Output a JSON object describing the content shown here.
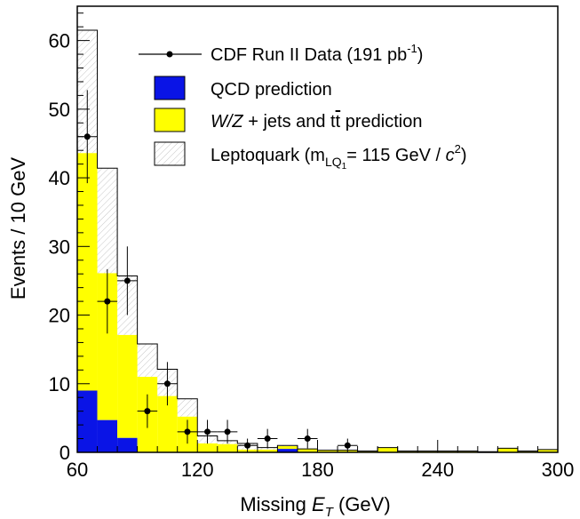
{
  "chart_data": {
    "type": "bar",
    "xlabel_prefix": "Missing ",
    "xlabel_var": "E",
    "xlabel_sub": "T",
    "xlabel_suffix": " (GeV)",
    "ylabel": "Events / 10 GeV",
    "xlim": [
      60,
      300
    ],
    "ylim": [
      0,
      65
    ],
    "bin_width": 10,
    "x_ticks": [
      60,
      120,
      180,
      240,
      300
    ],
    "x_tick_labels": [
      "60",
      "120",
      "180",
      "240",
      "300"
    ],
    "y_ticks": [
      0,
      10,
      20,
      30,
      40,
      50,
      60
    ],
    "y_tick_labels": [
      "0",
      "10",
      "20",
      "30",
      "40",
      "50",
      "60"
    ],
    "bin_low_edges": [
      60,
      70,
      80,
      90,
      100,
      110,
      120,
      130,
      140,
      150,
      160,
      170,
      180,
      190,
      200,
      210,
      220,
      230,
      240,
      250,
      260,
      270,
      280,
      290
    ],
    "stack": [
      {
        "name": "QCD prediction",
        "color": "#0a14e6",
        "values": [
          9,
          4.7,
          2.1,
          0,
          0,
          0,
          0,
          0,
          0,
          0,
          0.5,
          0,
          0,
          0,
          0,
          0,
          0,
          0,
          0,
          0,
          0,
          0,
          0,
          0
        ]
      },
      {
        "name": "W/Z + jets and tt prediction",
        "color": "#ffff00",
        "values": [
          34.6,
          21.4,
          15.0,
          11.0,
          8.2,
          5.2,
          1.3,
          1.2,
          0.4,
          0.4,
          0.4,
          0.5,
          0.3,
          0.3,
          0.2,
          0.7,
          0.2,
          0.2,
          0.2,
          0.2,
          0.1,
          0.6,
          0.2,
          0.4
        ]
      },
      {
        "name": "Leptoquark (mLQ1 = 115 GeV / c2)",
        "color": "#ffffff",
        "values": [
          17.9,
          15.3,
          8.6,
          4.8,
          3.9,
          2.6,
          1.1,
          0.5,
          0.9,
          0.3,
          0.1,
          0,
          0,
          0,
          0,
          0,
          0,
          0,
          0,
          0,
          0,
          0,
          0,
          0
        ]
      }
    ],
    "data_points": {
      "name": "CDF Run II Data (191 pb-1)",
      "x": [
        65,
        75,
        85,
        95,
        105,
        115,
        125,
        135,
        145,
        155,
        165,
        175,
        185,
        195
      ],
      "y": [
        46,
        22,
        25,
        6,
        10,
        3,
        3,
        3,
        1,
        2,
        0,
        2,
        0,
        1
      ]
    },
    "legend": {
      "position": "top-right",
      "entries": [
        {
          "kind": "data",
          "text_main": "CDF Run II Data (191 pb",
          "text_sup": "-1",
          "text_end": ")"
        },
        {
          "kind": "fill",
          "color": "#0a14e6",
          "text_main": "QCD prediction"
        },
        {
          "kind": "fill",
          "color": "#ffff00",
          "text_italic": "W/Z",
          "text_main": " + jets and t",
          "text_tbar": "t",
          "text_end": " prediction"
        },
        {
          "kind": "hatch",
          "text_main": "Leptoquark (m",
          "text_sub": "LQ",
          "text_subsub": "1",
          "text_mid": "= 115 GeV / ",
          "text_italic2": "c",
          "text_sup": "2",
          "text_end": ")"
        }
      ]
    }
  }
}
